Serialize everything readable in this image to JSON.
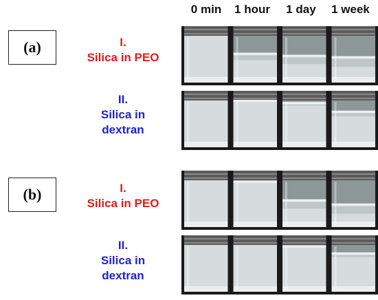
{
  "columns": [
    "0 min",
    "1 hour",
    "1 day",
    "1 week"
  ],
  "panels": [
    {
      "tag": "(a)",
      "rows": [
        {
          "numeral": "I.",
          "lines": [
            "Silica in PEO"
          ],
          "color": "#e01b1b"
        },
        {
          "numeral": "II.",
          "lines": [
            "Silica in",
            "dextran"
          ],
          "color": "#1f22cc"
        }
      ]
    },
    {
      "tag": "(b)",
      "rows": [
        {
          "numeral": "I.",
          "lines": [
            "Silica in PEO"
          ],
          "color": "#e01b1b"
        },
        {
          "numeral": "II.",
          "lines": [
            "Silica in",
            "dextran"
          ],
          "color": "#1f22cc"
        }
      ]
    }
  ]
}
